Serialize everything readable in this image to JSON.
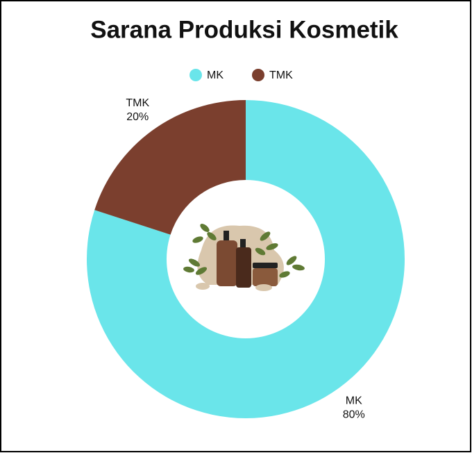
{
  "chart_data": {
    "type": "donut",
    "title": "Sarana Produksi Kosmetik",
    "categories": [
      "MK",
      "TMK"
    ],
    "values": [
      80,
      20
    ],
    "value_labels": [
      "80%",
      "20%"
    ],
    "colors": [
      "#6ae5ea",
      "#7b3f2e"
    ],
    "legend": "top"
  }
}
